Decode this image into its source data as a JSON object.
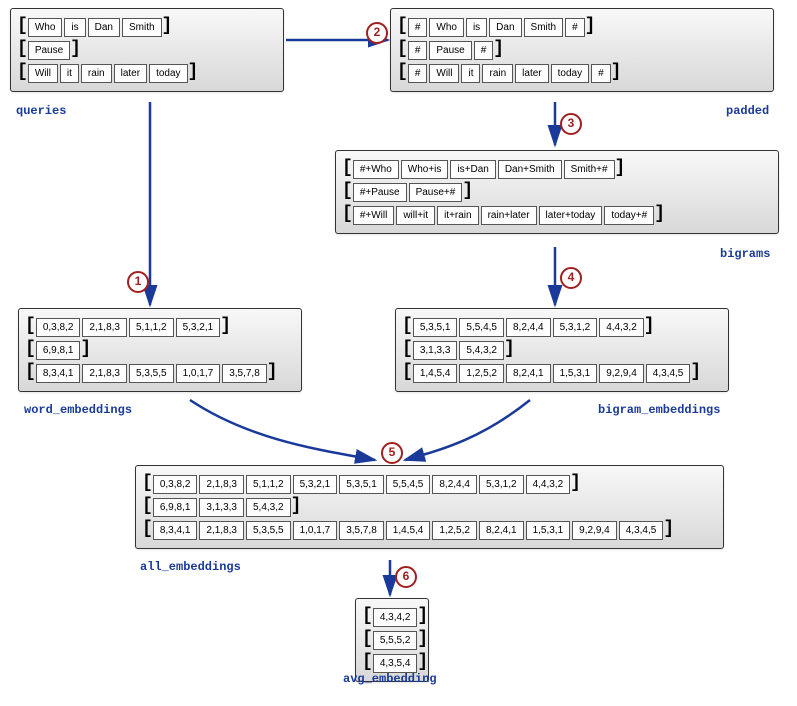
{
  "colors": {
    "label": "#1a3a9a",
    "step": "#a02020",
    "arrow": "#1a3a9a",
    "box_border": "#333"
  },
  "steps": [
    "1",
    "2",
    "3",
    "4",
    "5",
    "6"
  ],
  "nodes": {
    "queries": {
      "label": "queries",
      "rows": [
        [
          "Who",
          "is",
          "Dan",
          "Smith"
        ],
        [
          "Pause"
        ],
        [
          "Will",
          "it",
          "rain",
          "later",
          "today"
        ]
      ]
    },
    "padded": {
      "label": "padded",
      "rows": [
        [
          "#",
          "Who",
          "is",
          "Dan",
          "Smith",
          "#"
        ],
        [
          "#",
          "Pause",
          "#"
        ],
        [
          "#",
          "Will",
          "it",
          "rain",
          "later",
          "today",
          "#"
        ]
      ]
    },
    "bigrams": {
      "label": "bigrams",
      "rows": [
        [
          "#+Who",
          "Who+is",
          "is+Dan",
          "Dan+Smith",
          "Smith+#"
        ],
        [
          "#+Pause",
          "Pause+#"
        ],
        [
          "#+Will",
          "will+it",
          "it+rain",
          "rain+later",
          "later+today",
          "today+#"
        ]
      ]
    },
    "word_embeddings": {
      "label": "word_embeddings",
      "rows": [
        [
          "0,3,8,2",
          "2,1,8,3",
          "5,1,1,2",
          "5,3,2,1"
        ],
        [
          "6,9,8,1"
        ],
        [
          "8,3,4,1",
          "2,1,8,3",
          "5,3,5,5",
          "1,0,1,7",
          "3,5,7,8"
        ]
      ]
    },
    "bigram_embeddings": {
      "label": "bigram_embeddings",
      "rows": [
        [
          "5,3,5,1",
          "5,5,4,5",
          "8,2,4,4",
          "5,3,1,2",
          "4,4,3,2"
        ],
        [
          "3,1,3,3",
          "5,4,3,2"
        ],
        [
          "1,4,5,4",
          "1,2,5,2",
          "8,2,4,1",
          "1,5,3,1",
          "9,2,9,4",
          "4,3,4,5"
        ]
      ]
    },
    "all_embeddings": {
      "label": "all_embeddings",
      "rows": [
        [
          "0,3,8,2",
          "2,1,8,3",
          "5,1,1,2",
          "5,3,2,1",
          "5,3,5,1",
          "5,5,4,5",
          "8,2,4,4",
          "5,3,1,2",
          "4,4,3,2"
        ],
        [
          "6,9,8,1",
          "3,1,3,3",
          "5,4,3,2"
        ],
        [
          "8,3,4,1",
          "2,1,8,3",
          "5,3,5,5",
          "1,0,1,7",
          "3,5,7,8",
          "1,4,5,4",
          "1,2,5,2",
          "8,2,4,1",
          "1,5,3,1",
          "9,2,9,4",
          "4,3,4,5"
        ]
      ]
    },
    "avg_embedding": {
      "label": "avg_embedding",
      "rows": [
        [
          "4,3,4,2"
        ],
        [
          "5,5,5,2"
        ],
        [
          "4,3,5,4"
        ]
      ]
    }
  }
}
